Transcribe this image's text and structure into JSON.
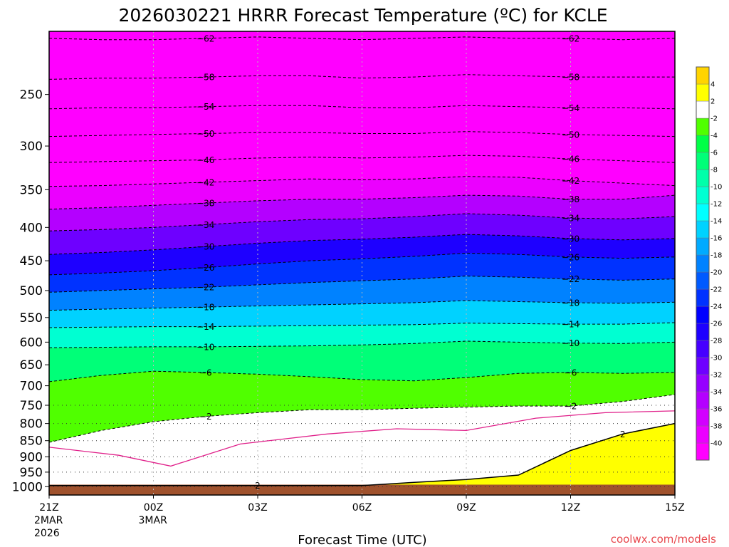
{
  "chart_data": {
    "type": "heatmap",
    "title": "2026030221 HRRR Forecast Temperature (ºC) for KCLE",
    "xlabel": "Forecast Time (UTC)",
    "ylabel": "",
    "x_ticks": [
      {
        "hour": 0,
        "label": "21Z",
        "date": "2MAR",
        "year": "2026"
      },
      {
        "hour": 3,
        "label": "00Z",
        "date": "3MAR",
        "year": ""
      },
      {
        "hour": 6,
        "label": "03Z",
        "date": "",
        "year": ""
      },
      {
        "hour": 9,
        "label": "06Z",
        "date": "",
        "year": ""
      },
      {
        "hour": 12,
        "label": "09Z",
        "date": "",
        "year": ""
      },
      {
        "hour": 15,
        "label": "12Z",
        "date": "",
        "year": ""
      },
      {
        "hour": 18,
        "label": "15Z",
        "date": "",
        "year": ""
      }
    ],
    "xlim": [
      0,
      18
    ],
    "y_ticks": [
      1000,
      950,
      900,
      850,
      800,
      750,
      700,
      650,
      600,
      550,
      500,
      450,
      400,
      350,
      300,
      250
    ],
    "y_tick_labels": [
      "1000",
      "950",
      "900",
      "850",
      "800",
      "750",
      "700",
      "650",
      "600",
      "550",
      "500",
      "450",
      "400",
      "350",
      "300",
      "250"
    ],
    "ylim_hpa": [
      1030,
      200
    ],
    "ground_top_hpa": 993,
    "y_scale": "log-pressure",
    "grid": true,
    "isotherms": [
      {
        "value": -62,
        "hpa": [
          205,
          206,
          206,
          205,
          204,
          205,
          206,
          205,
          204,
          205,
          205,
          206,
          205
        ]
      },
      {
        "value": -58,
        "hpa": [
          237,
          236,
          236,
          235,
          234,
          234,
          236,
          235,
          233,
          234,
          235,
          235,
          235
        ]
      },
      {
        "value": -54,
        "hpa": [
          263,
          262,
          262,
          261,
          260,
          260,
          262,
          262,
          260,
          261,
          262,
          262,
          263
        ]
      },
      {
        "value": -50,
        "hpa": [
          290,
          289,
          288,
          287,
          286,
          286,
          287,
          287,
          285,
          286,
          288,
          289,
          290
        ]
      },
      {
        "value": -46,
        "hpa": [
          318,
          317,
          316,
          315,
          313,
          312,
          313,
          312,
          310,
          311,
          314,
          316,
          318
        ]
      },
      {
        "value": -42,
        "hpa": [
          346,
          345,
          343,
          341,
          339,
          337,
          338,
          337,
          334,
          335,
          339,
          342,
          345
        ]
      },
      {
        "value": -38,
        "hpa": [
          375,
          373,
          370,
          367,
          364,
          362,
          362,
          360,
          357,
          358,
          362,
          362,
          357
        ]
      },
      {
        "value": -34,
        "hpa": [
          405,
          403,
          400,
          396,
          392,
          389,
          388,
          385,
          381,
          383,
          387,
          388,
          385
        ]
      },
      {
        "value": -30,
        "hpa": [
          440,
          437,
          433,
          428,
          423,
          419,
          417,
          414,
          410,
          412,
          416,
          418,
          416
        ]
      },
      {
        "value": -26,
        "hpa": [
          473,
          470,
          466,
          461,
          455,
          450,
          447,
          443,
          438,
          440,
          444,
          446,
          444
        ]
      },
      {
        "value": -22,
        "hpa": [
          503,
          500,
          497,
          494,
          490,
          486,
          483,
          480,
          475,
          477,
          480,
          482,
          480
        ]
      },
      {
        "value": -18,
        "hpa": [
          536,
          534,
          532,
          530,
          528,
          526,
          524,
          522,
          518,
          520,
          522,
          523,
          521
        ]
      },
      {
        "value": -14,
        "hpa": [
          570,
          569,
          568,
          568,
          567,
          566,
          565,
          564,
          561,
          562,
          563,
          563,
          560
        ]
      },
      {
        "value": -10,
        "hpa": [
          612,
          611,
          610,
          610,
          609,
          608,
          606,
          603,
          598,
          600,
          602,
          603,
          600
        ]
      },
      {
        "value": -6,
        "hpa": [
          690,
          675,
          665,
          668,
          672,
          678,
          685,
          688,
          680,
          670,
          668,
          670,
          668
        ]
      },
      {
        "value": -2,
        "hpa": [
          855,
          820,
          795,
          780,
          770,
          762,
          762,
          758,
          755,
          752,
          752,
          740,
          722
        ]
      },
      {
        "value": 2,
        "hpa": [
          996,
          996,
          996,
          996,
          996,
          996,
          996,
          985,
          975,
          960,
          880,
          830,
          800
        ]
      }
    ],
    "temperature_bands": [
      {
        "lo": -2,
        "hi": 2,
        "color": "#ffffff"
      },
      {
        "lo": 2,
        "hi": 4,
        "color": "#ffff00"
      }
    ],
    "colorbar": {
      "levels": [
        -40,
        -38,
        -36,
        -34,
        -32,
        -30,
        -28,
        -26,
        -24,
        -22,
        -20,
        -18,
        -16,
        -14,
        -12,
        -10,
        -8,
        -6,
        -4,
        -2,
        2,
        4
      ],
      "colors": [
        "#ff00ff",
        "#eb00ff",
        "#d200ff",
        "#b400ff",
        "#9600ff",
        "#6e00ff",
        "#4600ff",
        "#1e00ff",
        "#0000ff",
        "#0032ff",
        "#005aff",
        "#0082ff",
        "#00aaff",
        "#00d2ff",
        "#00ffff",
        "#00ffd2",
        "#00ffaa",
        "#00ff78",
        "#00ff46",
        "#50ff00",
        "#ffffff",
        "#ffff00",
        "#ffd400"
      ]
    }
  },
  "credit": "coolwx.com/models"
}
